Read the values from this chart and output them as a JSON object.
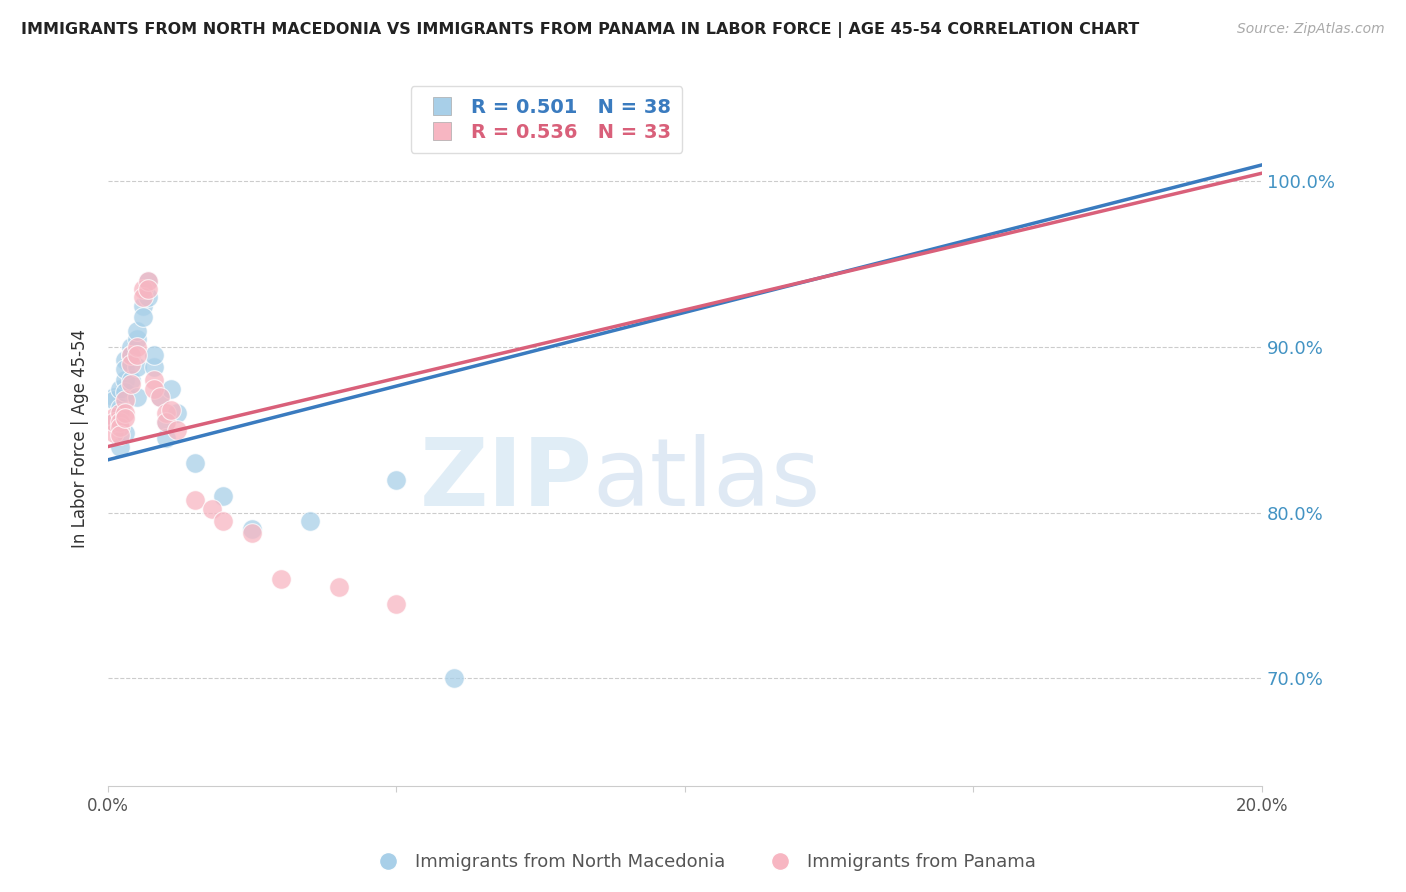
{
  "title": "IMMIGRANTS FROM NORTH MACEDONIA VS IMMIGRANTS FROM PANAMA IN LABOR FORCE | AGE 45-54 CORRELATION CHART",
  "source": "Source: ZipAtlas.com",
  "ylabel": "In Labor Force | Age 45-54",
  "legend_blue_label": "Immigrants from North Macedonia",
  "legend_pink_label": "Immigrants from Panama",
  "R_blue": 0.501,
  "N_blue": 38,
  "R_pink": 0.536,
  "N_pink": 33,
  "blue_color": "#a8cfe8",
  "pink_color": "#f7b6c2",
  "blue_line_color": "#3a7bbf",
  "pink_line_color": "#d9607a",
  "right_axis_color": "#4393c3",
  "grid_color": "#cccccc",
  "watermark_zip": "ZIP",
  "watermark_atlas": "atlas",
  "blue_x": [
    0.001,
    0.001,
    0.001,
    0.002,
    0.002,
    0.002,
    0.002,
    0.002,
    0.003,
    0.003,
    0.003,
    0.003,
    0.003,
    0.004,
    0.004,
    0.004,
    0.004,
    0.005,
    0.005,
    0.005,
    0.005,
    0.006,
    0.006,
    0.007,
    0.007,
    0.008,
    0.008,
    0.009,
    0.01,
    0.01,
    0.011,
    0.012,
    0.015,
    0.02,
    0.025,
    0.035,
    0.05,
    0.06
  ],
  "blue_y": [
    0.87,
    0.855,
    0.868,
    0.875,
    0.862,
    0.858,
    0.863,
    0.84,
    0.88,
    0.892,
    0.887,
    0.873,
    0.848,
    0.895,
    0.9,
    0.88,
    0.895,
    0.905,
    0.91,
    0.888,
    0.87,
    0.925,
    0.918,
    0.94,
    0.93,
    0.888,
    0.895,
    0.87,
    0.855,
    0.845,
    0.875,
    0.86,
    0.83,
    0.81,
    0.79,
    0.795,
    0.82,
    0.7
  ],
  "pink_x": [
    0.001,
    0.001,
    0.001,
    0.002,
    0.002,
    0.002,
    0.002,
    0.003,
    0.003,
    0.003,
    0.004,
    0.004,
    0.004,
    0.005,
    0.005,
    0.006,
    0.006,
    0.007,
    0.007,
    0.008,
    0.008,
    0.009,
    0.01,
    0.01,
    0.011,
    0.012,
    0.015,
    0.018,
    0.02,
    0.025,
    0.03,
    0.04,
    0.05
  ],
  "pink_y": [
    0.858,
    0.848,
    0.855,
    0.86,
    0.855,
    0.852,
    0.847,
    0.868,
    0.86,
    0.857,
    0.878,
    0.895,
    0.89,
    0.9,
    0.895,
    0.935,
    0.93,
    0.94,
    0.935,
    0.88,
    0.875,
    0.87,
    0.86,
    0.855,
    0.862,
    0.85,
    0.808,
    0.802,
    0.795,
    0.788,
    0.76,
    0.755,
    0.745
  ],
  "blue_line_x": [
    0.0,
    0.2
  ],
  "blue_line_y": [
    0.832,
    1.01
  ],
  "pink_line_x": [
    0.0,
    0.2
  ],
  "pink_line_y": [
    0.84,
    1.005
  ],
  "xlim": [
    0.0,
    0.2
  ],
  "ylim": [
    0.635,
    1.055
  ],
  "yticks": [
    0.7,
    0.8,
    0.9,
    1.0
  ],
  "ytick_labels": [
    "70.0%",
    "80.0%",
    "90.0%",
    "100.0%"
  ],
  "xticks": [
    0.0,
    0.05,
    0.1,
    0.15,
    0.2
  ],
  "xtick_labels": [
    "0.0%",
    "",
    "",
    "",
    "20.0%"
  ]
}
